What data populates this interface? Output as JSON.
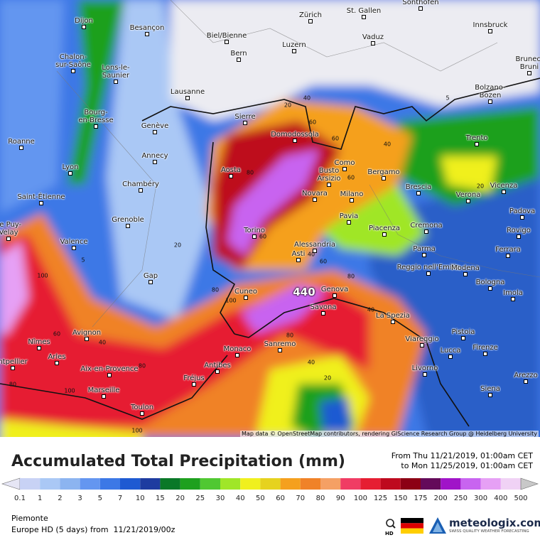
{
  "map": {
    "cities": [
      "Dijon",
      "Besançon",
      "Zürich",
      "St. Gallen",
      "Sonthofen",
      "Innsbruck",
      "Biel/Bienne",
      "Bern",
      "Luzern",
      "Vaduz",
      "Chalon-\nsur-Saône",
      "Lons-le-\nSaunier",
      "Lausanne",
      "Bolzano-\nBozen",
      "Brunec-\nBruni",
      "Bourg-\nen-Bresse",
      "Genève",
      "Sierre",
      "Domodossola",
      "Trento",
      "Roanne",
      "Annecy",
      "Aosta",
      "Como",
      "Busto\nArsizio",
      "Bergamo",
      "Lyon",
      "Chambéry",
      "Novara",
      "Milano",
      "Brescia",
      "Verona",
      "Vicenza",
      "Saint-Étienne",
      "Padova",
      "Grenoble",
      "Pavia",
      "Cremona",
      "Le Puy-\nVelay",
      "Torino",
      "Piacenza",
      "Rovigo",
      "Valence",
      "Alessandria",
      "Asti",
      "Parma",
      "Ferrara",
      "Reggio nell'Emilia",
      "Modena",
      "Gap",
      "Genova",
      "Bologna",
      "Cuneo",
      "Imola",
      "Savona",
      "La Spezia",
      "Avignon",
      "Pistoia",
      "Nîmes",
      "Viareggio",
      "Arles",
      "Monaco",
      "Sanremo",
      "Lucca",
      "Firenze",
      "ntpellier",
      "Aix-en-Provence",
      "Antibes",
      "Livorno",
      "Arezzo",
      "Fréjus",
      "Marseille",
      "Siena",
      "Toulon"
    ],
    "contour_labels": [
      40,
      20,
      60,
      80,
      80,
      100,
      60,
      40,
      60,
      40,
      60,
      80,
      40,
      80,
      40,
      20,
      60,
      40,
      80,
      100,
      80,
      100,
      100,
      20,
      5,
      5,
      20,
      60
    ],
    "max_value": 440,
    "attribution": "Map data © OpenStreetMap contributors, rendering GIScience Research Group @ Heidelberg University"
  },
  "legend": {
    "title": "Accumulated Total Precipitation (mm)",
    "period_from": "From Thu 11/21/2019, 01:00am CET",
    "period_to": "to Mon 11/25/2019, 01:00am CET",
    "colorbar": {
      "ticks": [
        0.1,
        1,
        2,
        3,
        5,
        7,
        10,
        15,
        20,
        25,
        30,
        40,
        50,
        60,
        70,
        80,
        90,
        100,
        125,
        150,
        175,
        200,
        250,
        300,
        400,
        500
      ],
      "colors": [
        "#e6e6f5",
        "#c8d2f5",
        "#aac8f5",
        "#8cb4f0",
        "#6496f0",
        "#3c78e6",
        "#1e5ad2",
        "#1e3ca0",
        "#0a7828",
        "#1ea01e",
        "#50c832",
        "#a0e628",
        "#f0f01e",
        "#e6d21e",
        "#f5a01e",
        "#f08228",
        "#f5a064",
        "#f03c64",
        "#e61e32",
        "#be0a1e",
        "#8c0014",
        "#640a5a",
        "#a014c8",
        "#c864f0",
        "#e6a0f5",
        "#f0d2f5",
        "#c8c8c8"
      ]
    }
  },
  "footer": {
    "region": "Piemonte",
    "model": "Europe HD (5 days) from  11/21/2019/00z",
    "hd": "HD",
    "brand": "meteologix.com",
    "tagline": "SWISS QUALITY WEATHER FORECASTING"
  }
}
